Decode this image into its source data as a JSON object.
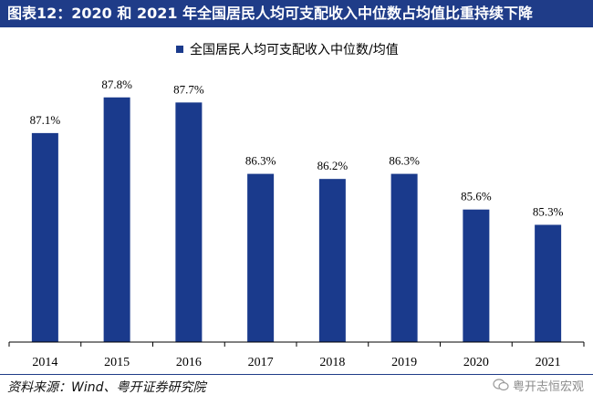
{
  "title": "图表12：2020 和 2021 年全国居民人均可支配收入中位数占均值比重持续下降",
  "source": "资料来源：Wind、粤开证券研究院",
  "watermark": "粤开志恒宏观",
  "colors": {
    "title_bg": "#1f3c88",
    "bar": "#1a3a8c",
    "axis": "#000000",
    "source_rule": "#1f3c88"
  },
  "chart_data": {
    "type": "bar",
    "categories": [
      "2014",
      "2015",
      "2016",
      "2017",
      "2018",
      "2019",
      "2020",
      "2021"
    ],
    "series": [
      {
        "name": "全国居民人均可支配收入中位数/均值",
        "values": [
          87.1,
          87.8,
          87.7,
          86.3,
          86.2,
          86.3,
          85.6,
          85.3
        ],
        "labels": [
          "87.1%",
          "87.8%",
          "87.7%",
          "86.3%",
          "86.2%",
          "86.3%",
          "85.6%",
          "85.3%"
        ]
      }
    ],
    "ylim": [
      83.0,
      88.1
    ],
    "grid": false,
    "legend": "top-center",
    "xlabel": "",
    "ylabel": ""
  }
}
